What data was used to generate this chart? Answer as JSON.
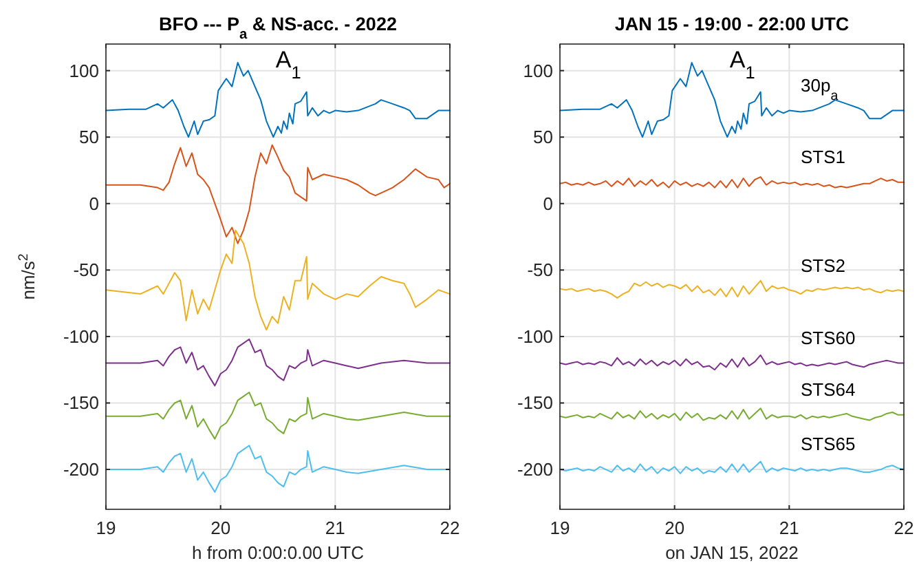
{
  "chart_data": [
    {
      "type": "line",
      "title": "BFO --- P$_{a}$ & NS-acc. - 2022",
      "xlabel": "h from 0:00:0.00 UTC",
      "ylabel": "nm/s$^{2}$",
      "xlim": [
        19,
        22
      ],
      "xticks": [
        19,
        20,
        21,
        22
      ],
      "ylim": [
        -230,
        120
      ],
      "yticks": [
        -200,
        -150,
        -100,
        -50,
        0,
        50,
        100
      ],
      "grid": true,
      "annotations": [
        {
          "text": "A$_{1}$",
          "x": 20.75,
          "y": 84
        }
      ],
      "series": [
        {
          "color": "#0072bd",
          "x": [
            19,
            19.2,
            19.35,
            19.45,
            19.5,
            19.58,
            19.63,
            19.68,
            19.72,
            19.77,
            19.8,
            19.85,
            19.9,
            19.95,
            19.98,
            20.05,
            20.1,
            20.15,
            20.2,
            20.24,
            20.3,
            20.35,
            20.4,
            20.46,
            20.5,
            20.53,
            20.55,
            20.58,
            20.6,
            20.63,
            20.65,
            20.7,
            20.75,
            20.76,
            20.8,
            20.85,
            20.9,
            20.95,
            21,
            21.1,
            21.2,
            21.35,
            21.4,
            21.5,
            21.6,
            21.65,
            21.7,
            21.8,
            21.9,
            22
          ],
          "values": [
            70,
            71,
            71,
            75,
            72,
            78,
            70,
            58,
            50,
            62,
            52,
            62,
            63,
            66,
            85,
            94,
            88,
            106,
            96,
            100,
            88,
            78,
            62,
            50,
            58,
            53,
            62,
            56,
            68,
            60,
            75,
            77,
            84,
            66,
            72,
            66,
            70,
            68,
            70,
            69,
            70,
            75,
            78,
            75,
            72,
            70,
            64,
            64,
            70,
            70
          ]
        },
        {
          "color": "#d95319",
          "x": [
            19,
            19.3,
            19.45,
            19.5,
            19.55,
            19.6,
            19.65,
            19.7,
            19.75,
            19.8,
            19.85,
            19.9,
            19.95,
            20,
            20.05,
            20.1,
            20.15,
            20.2,
            20.25,
            20.3,
            20.35,
            20.4,
            20.45,
            20.5,
            20.55,
            20.6,
            20.65,
            20.7,
            20.75,
            20.76,
            20.8,
            20.9,
            21,
            21.1,
            21.2,
            21.3,
            21.35,
            21.4,
            21.5,
            21.6,
            21.7,
            21.8,
            21.9,
            21.95,
            22
          ],
          "values": [
            14,
            14,
            12,
            10,
            16,
            30,
            42,
            28,
            38,
            22,
            18,
            12,
            0,
            -12,
            -25,
            -18,
            -30,
            -20,
            -5,
            20,
            38,
            30,
            44,
            35,
            25,
            20,
            8,
            5,
            2,
            27,
            18,
            22,
            20,
            18,
            14,
            8,
            6,
            8,
            12,
            18,
            26,
            20,
            18,
            12,
            15
          ]
        },
        {
          "color": "#edb120",
          "x": [
            19,
            19.3,
            19.45,
            19.5,
            19.6,
            19.65,
            19.7,
            19.75,
            19.8,
            19.85,
            19.9,
            19.95,
            20,
            20.05,
            20.1,
            20.13,
            20.2,
            20.25,
            20.3,
            20.35,
            20.4,
            20.45,
            20.5,
            20.55,
            20.6,
            20.65,
            20.7,
            20.75,
            20.76,
            20.8,
            20.9,
            21,
            21.1,
            21.2,
            21.3,
            21.4,
            21.5,
            21.6,
            21.65,
            21.7,
            21.8,
            21.9,
            22
          ],
          "values": [
            -65,
            -68,
            -62,
            -68,
            -52,
            -58,
            -88,
            -65,
            -83,
            -72,
            -80,
            -65,
            -50,
            -38,
            -45,
            -20,
            -30,
            -45,
            -70,
            -85,
            -95,
            -85,
            -90,
            -70,
            -80,
            -58,
            -58,
            -40,
            -72,
            -60,
            -68,
            -72,
            -68,
            -70,
            -62,
            -55,
            -58,
            -60,
            -68,
            -78,
            -72,
            -65,
            -68
          ]
        },
        {
          "color": "#7e2f8e",
          "x": [
            19,
            19.3,
            19.45,
            19.5,
            19.55,
            19.6,
            19.65,
            19.7,
            19.75,
            19.8,
            19.85,
            19.9,
            19.95,
            20,
            20.05,
            20.1,
            20.15,
            20.2,
            20.25,
            20.3,
            20.35,
            20.4,
            20.45,
            20.5,
            20.55,
            20.6,
            20.65,
            20.7,
            20.75,
            20.76,
            20.8,
            20.9,
            21,
            21.1,
            21.2,
            21.4,
            21.6,
            21.8,
            22
          ],
          "values": [
            -120,
            -120,
            -118,
            -122,
            -115,
            -110,
            -108,
            -120,
            -112,
            -125,
            -122,
            -130,
            -137,
            -128,
            -125,
            -118,
            -108,
            -105,
            -102,
            -112,
            -110,
            -122,
            -125,
            -130,
            -133,
            -122,
            -124,
            -120,
            -118,
            -110,
            -122,
            -118,
            -120,
            -122,
            -124,
            -120,
            -118,
            -120,
            -120
          ]
        },
        {
          "color": "#77ac30",
          "x": [
            19,
            19.3,
            19.45,
            19.5,
            19.55,
            19.6,
            19.65,
            19.7,
            19.75,
            19.8,
            19.85,
            19.9,
            19.95,
            20,
            20.05,
            20.1,
            20.15,
            20.2,
            20.25,
            20.3,
            20.35,
            20.4,
            20.45,
            20.5,
            20.55,
            20.6,
            20.65,
            20.7,
            20.75,
            20.76,
            20.8,
            20.9,
            21,
            21.1,
            21.2,
            21.4,
            21.6,
            21.8,
            22
          ],
          "values": [
            -160,
            -160,
            -158,
            -162,
            -155,
            -150,
            -148,
            -162,
            -152,
            -168,
            -162,
            -170,
            -177,
            -168,
            -165,
            -158,
            -148,
            -145,
            -142,
            -152,
            -150,
            -162,
            -165,
            -170,
            -173,
            -162,
            -164,
            -160,
            -158,
            -146,
            -162,
            -158,
            -160,
            -162,
            -163,
            -160,
            -157,
            -160,
            -160
          ]
        },
        {
          "color": "#4dbeee",
          "x": [
            19,
            19.3,
            19.45,
            19.5,
            19.55,
            19.6,
            19.65,
            19.7,
            19.75,
            19.8,
            19.85,
            19.9,
            19.95,
            20,
            20.05,
            20.1,
            20.15,
            20.2,
            20.25,
            20.3,
            20.35,
            20.4,
            20.45,
            20.5,
            20.55,
            20.6,
            20.65,
            20.7,
            20.75,
            20.76,
            20.8,
            20.9,
            21,
            21.1,
            21.2,
            21.4,
            21.6,
            21.8,
            22
          ],
          "values": [
            -200,
            -200,
            -198,
            -202,
            -195,
            -190,
            -188,
            -202,
            -192,
            -208,
            -202,
            -210,
            -217,
            -208,
            -205,
            -198,
            -188,
            -185,
            -182,
            -192,
            -190,
            -202,
            -205,
            -210,
            -213,
            -202,
            -204,
            -200,
            -198,
            -186,
            -202,
            -198,
            -200,
            -202,
            -203,
            -200,
            -197,
            -200,
            -200
          ]
        }
      ]
    },
    {
      "type": "line",
      "title": "JAN 15 - 19:00 - 22:00 UTC",
      "xlabel": "on JAN 15, 2022",
      "xlim": [
        19,
        22
      ],
      "xticks": [
        19,
        20,
        21,
        22
      ],
      "ylim": [
        -230,
        120
      ],
      "yticks": [
        -200,
        -150,
        -100,
        -50,
        0,
        50,
        100
      ],
      "grid": true,
      "annotations": [
        {
          "text": "A$_{1}$",
          "x": 20.75,
          "y": 84
        }
      ],
      "x": [
        19,
        19.05,
        19.1,
        19.15,
        19.2,
        19.25,
        19.3,
        19.35,
        19.4,
        19.45,
        19.5,
        19.55,
        19.6,
        19.65,
        19.7,
        19.75,
        19.8,
        19.85,
        19.9,
        19.95,
        20,
        20.05,
        20.1,
        20.15,
        20.2,
        20.25,
        20.3,
        20.35,
        20.4,
        20.45,
        20.5,
        20.55,
        20.6,
        20.65,
        20.7,
        20.75,
        20.8,
        20.85,
        20.9,
        20.95,
        21,
        21.05,
        21.1,
        21.15,
        21.2,
        21.25,
        21.3,
        21.35,
        21.4,
        21.45,
        21.5,
        21.55,
        21.6,
        21.65,
        21.7,
        21.75,
        21.8,
        21.85,
        21.9,
        21.95,
        22
      ],
      "series": [
        {
          "name": "30p$_{a}$",
          "color": "#0072bd",
          "x": [
            19,
            19.2,
            19.35,
            19.45,
            19.5,
            19.58,
            19.63,
            19.68,
            19.72,
            19.77,
            19.8,
            19.85,
            19.9,
            19.95,
            19.98,
            20.05,
            20.1,
            20.15,
            20.2,
            20.24,
            20.3,
            20.35,
            20.4,
            20.46,
            20.5,
            20.53,
            20.55,
            20.58,
            20.6,
            20.63,
            20.65,
            20.7,
            20.75,
            20.76,
            20.8,
            20.85,
            20.9,
            20.95,
            21,
            21.1,
            21.2,
            21.35,
            21.4,
            21.5,
            21.6,
            21.65,
            21.7,
            21.8,
            21.9,
            22
          ],
          "values": [
            70,
            71,
            71,
            75,
            72,
            78,
            70,
            58,
            50,
            62,
            52,
            62,
            63,
            66,
            85,
            94,
            88,
            106,
            96,
            100,
            88,
            78,
            62,
            50,
            58,
            53,
            62,
            56,
            68,
            60,
            75,
            77,
            84,
            66,
            72,
            66,
            70,
            68,
            70,
            69,
            70,
            75,
            78,
            75,
            72,
            70,
            64,
            64,
            70,
            70
          ]
        },
        {
          "name": "STS1",
          "color": "#d95319",
          "values": [
            15,
            16,
            14,
            15,
            14,
            16,
            14,
            15,
            17,
            13,
            17,
            14,
            19,
            13,
            17,
            14,
            18,
            13,
            16,
            12,
            17,
            14,
            16,
            13,
            15,
            13,
            16,
            12,
            17,
            12,
            18,
            12,
            19,
            13,
            18,
            20,
            14,
            17,
            15,
            16,
            15,
            16,
            14,
            15,
            14,
            15,
            13,
            14,
            12,
            13,
            12,
            13,
            14,
            15,
            15,
            17,
            19,
            17,
            18,
            16,
            16
          ]
        },
        {
          "name": "STS2",
          "color": "#edb120",
          "values": [
            -64,
            -65,
            -64,
            -66,
            -65,
            -64,
            -66,
            -65,
            -66,
            -68,
            -71,
            -68,
            -66,
            -60,
            -62,
            -59,
            -62,
            -60,
            -63,
            -61,
            -62,
            -64,
            -61,
            -66,
            -62,
            -67,
            -65,
            -69,
            -64,
            -70,
            -63,
            -70,
            -62,
            -68,
            -63,
            -58,
            -66,
            -62,
            -64,
            -63,
            -65,
            -66,
            -68,
            -65,
            -66,
            -64,
            -65,
            -64,
            -63,
            -64,
            -63,
            -64,
            -63,
            -65,
            -64,
            -66,
            -67,
            -65,
            -66,
            -65,
            -66
          ]
        },
        {
          "name": "STS60",
          "color": "#7e2f8e",
          "values": [
            -120,
            -121,
            -120,
            -119,
            -121,
            -120,
            -121,
            -119,
            -120,
            -122,
            -116,
            -121,
            -119,
            -122,
            -117,
            -121,
            -118,
            -122,
            -119,
            -121,
            -118,
            -122,
            -117,
            -121,
            -119,
            -123,
            -122,
            -125,
            -120,
            -123,
            -117,
            -123,
            -116,
            -122,
            -119,
            -114,
            -121,
            -119,
            -121,
            -120,
            -119,
            -121,
            -120,
            -122,
            -121,
            -122,
            -121,
            -120,
            -121,
            -120,
            -119,
            -121,
            -122,
            -123,
            -121,
            -120,
            -119,
            -118,
            -119,
            -120,
            -120
          ]
        },
        {
          "name": "STS64",
          "color": "#77ac30",
          "values": [
            -160,
            -161,
            -160,
            -159,
            -161,
            -160,
            -161,
            -158,
            -160,
            -162,
            -157,
            -161,
            -159,
            -162,
            -156,
            -161,
            -158,
            -162,
            -159,
            -161,
            -158,
            -163,
            -157,
            -161,
            -158,
            -163,
            -161,
            -162,
            -159,
            -162,
            -156,
            -162,
            -155,
            -162,
            -158,
            -154,
            -162,
            -159,
            -161,
            -160,
            -160,
            -161,
            -159,
            -162,
            -160,
            -161,
            -160,
            -161,
            -160,
            -159,
            -158,
            -160,
            -161,
            -162,
            -163,
            -161,
            -160,
            -158,
            -157,
            -159,
            -159
          ]
        },
        {
          "name": "STS65",
          "color": "#4dbeee",
          "values": [
            -200,
            -201,
            -200,
            -199,
            -201,
            -200,
            -201,
            -198,
            -200,
            -202,
            -197,
            -201,
            -199,
            -202,
            -196,
            -201,
            -198,
            -203,
            -199,
            -201,
            -198,
            -203,
            -198,
            -201,
            -199,
            -203,
            -201,
            -202,
            -198,
            -202,
            -196,
            -202,
            -196,
            -202,
            -198,
            -194,
            -202,
            -199,
            -201,
            -199,
            -200,
            -201,
            -199,
            -201,
            -200,
            -201,
            -200,
            -201,
            -200,
            -199,
            -199,
            -200,
            -201,
            -202,
            -202,
            -201,
            -200,
            -198,
            -197,
            -199,
            -200
          ]
        }
      ]
    }
  ]
}
